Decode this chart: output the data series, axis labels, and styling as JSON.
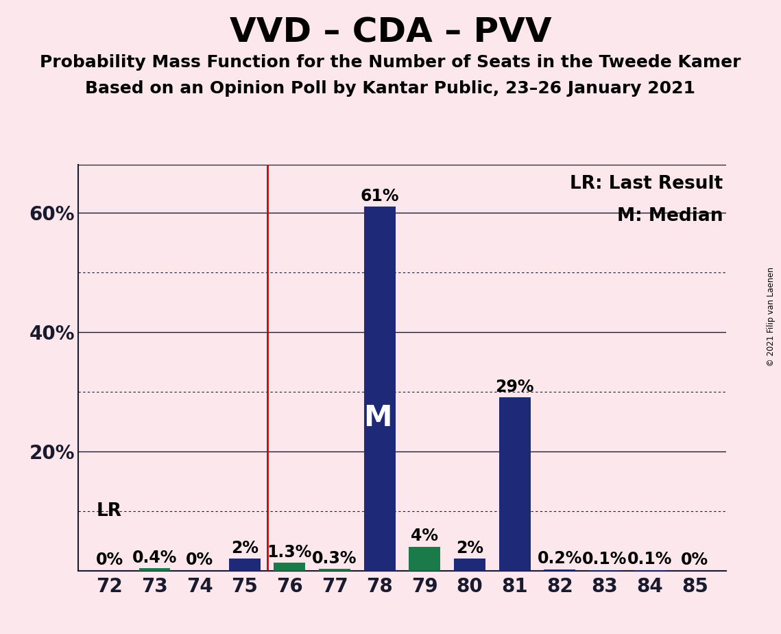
{
  "title": "VVD – CDA – PVV",
  "subtitle1": "Probability Mass Function for the Number of Seats in the Tweede Kamer",
  "subtitle2": "Based on an Opinion Poll by Kantar Public, 23–26 January 2021",
  "copyright": "© 2021 Filip van Laenen",
  "seats": [
    72,
    73,
    74,
    75,
    76,
    77,
    78,
    79,
    80,
    81,
    82,
    83,
    84,
    85
  ],
  "probabilities": [
    0.0,
    0.4,
    0.0,
    2.0,
    1.3,
    0.3,
    61.0,
    4.0,
    2.0,
    29.0,
    0.2,
    0.1,
    0.1,
    0.0
  ],
  "bar_colors": [
    "#1e2a78",
    "#1a7a4a",
    "#1e2a78",
    "#1e2a78",
    "#1a7a4a",
    "#1a7a4a",
    "#1e2a78",
    "#1a7a4a",
    "#1e2a78",
    "#1e2a78",
    "#1e2a78",
    "#1e2a78",
    "#1e2a78",
    "#1e2a78"
  ],
  "median_seat": 78,
  "last_result_seat": 75.5,
  "background_color": "#fce8ec",
  "legend_lr": "LR: Last Result",
  "legend_m": "M: Median",
  "lr_label": "LR",
  "median_label": "M",
  "ylim_max": 68,
  "solid_gridlines": [
    20,
    40,
    60
  ],
  "dotted_gridlines": [
    10,
    30,
    50
  ],
  "title_fontsize": 36,
  "subtitle_fontsize": 18,
  "axis_fontsize": 20,
  "label_fontsize": 17,
  "annotation_fontsize": 19,
  "median_label_fontsize": 30
}
